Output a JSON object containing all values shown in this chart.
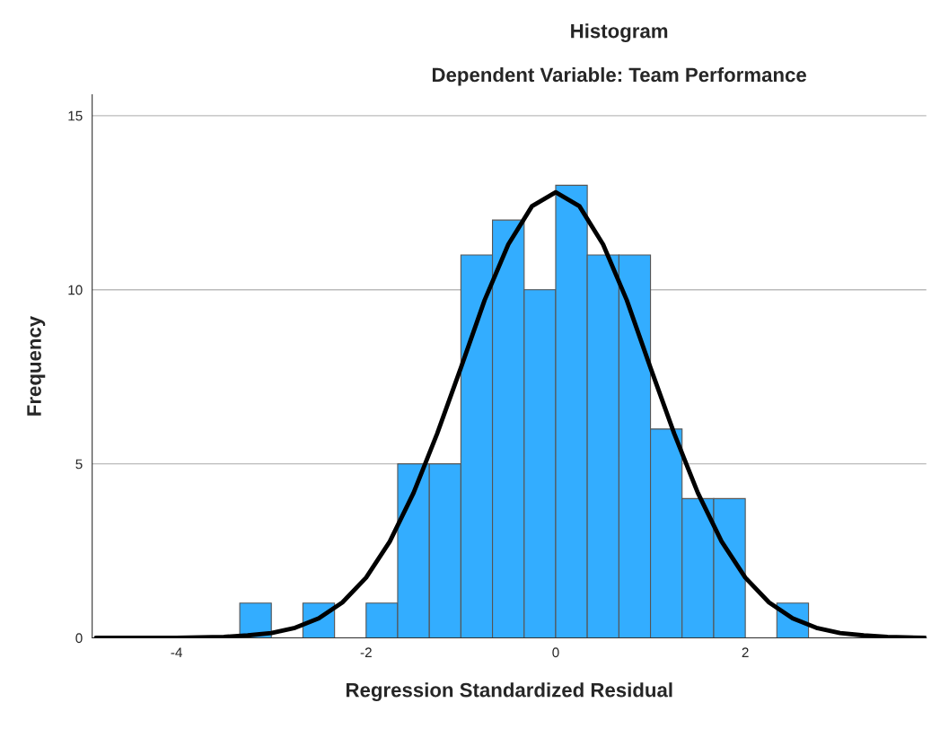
{
  "chart_data": {
    "type": "histogram",
    "title": "Histogram",
    "subtitle": "Dependent Variable: Team Performance",
    "xlabel": "Regression Standardized Residual",
    "ylabel": "Frequency",
    "bins": [
      -3.333,
      -3.0,
      -2.667,
      -2.333,
      -2.0,
      -1.667,
      -1.333,
      -1.0,
      -0.667,
      -0.333,
      0,
      0.333,
      0.667,
      1.0,
      1.333,
      1.667,
      2.0,
      2.333,
      2.667
    ],
    "values": [
      1,
      0,
      1,
      0,
      1,
      5,
      5,
      11,
      12,
      10,
      13,
      11,
      11,
      6,
      4,
      4,
      0,
      1
    ],
    "color": "#33adff",
    "series": [
      {
        "type": "line",
        "color": "#000000",
        "x": [
          -4.85,
          -4.5,
          -4,
          -3.5,
          -3.25,
          -3,
          -2.75,
          -2.5,
          -2.25,
          -2,
          -1.75,
          -1.5,
          -1.25,
          -1,
          -0.75,
          -0.5,
          -0.25,
          0,
          0.25,
          0.5,
          0.75,
          1,
          1.25,
          1.5,
          1.75,
          2,
          2.25,
          2.5,
          2.75,
          3,
          3.25,
          3.5,
          3.9
        ],
        "values": [
          0,
          0,
          0,
          0.03,
          0.07,
          0.14,
          0.29,
          0.56,
          1.02,
          1.73,
          2.77,
          4.16,
          5.87,
          7.76,
          9.7,
          11.3,
          12.4,
          12.8,
          12.4,
          11.3,
          9.7,
          7.76,
          5.87,
          4.16,
          2.77,
          1.73,
          1.02,
          0.56,
          0.29,
          0.14,
          0.07,
          0.03,
          0
        ]
      }
    ],
    "xlim": [
      -4.89,
      3.91
    ],
    "ylim": [
      0,
      15.6
    ],
    "xticks": [
      -4,
      -2,
      0,
      2
    ],
    "yticks": [
      0,
      5,
      10,
      15
    ],
    "grid": "y"
  }
}
